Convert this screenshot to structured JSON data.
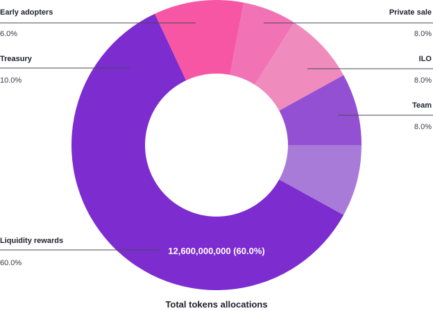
{
  "chart_data": {
    "type": "pie",
    "variant": "donut",
    "title": "Total tokens allocations",
    "center_label": "12,600,000,000 (60.0%)",
    "slices": [
      {
        "label": "Team",
        "percent_label": "8.0%",
        "value": 8.0,
        "color": "#a97bd9"
      },
      {
        "label": "Liquidity rewards",
        "percent_label": "60.0%",
        "value": 60.0,
        "color": "#7c2ccf"
      },
      {
        "label": "Treasury",
        "percent_label": "10.0%",
        "value": 10.0,
        "color": "#f656a3"
      },
      {
        "label": "Early adopters",
        "percent_label": "6.0%",
        "value": 6.0,
        "color": "#f273b5"
      },
      {
        "label": "Private sale",
        "percent_label": "8.0%",
        "value": 8.0,
        "color": "#f08cbd"
      },
      {
        "label": "ILO",
        "percent_label": "8.0%",
        "value": 8.0,
        "color": "#9450d2"
      }
    ]
  }
}
